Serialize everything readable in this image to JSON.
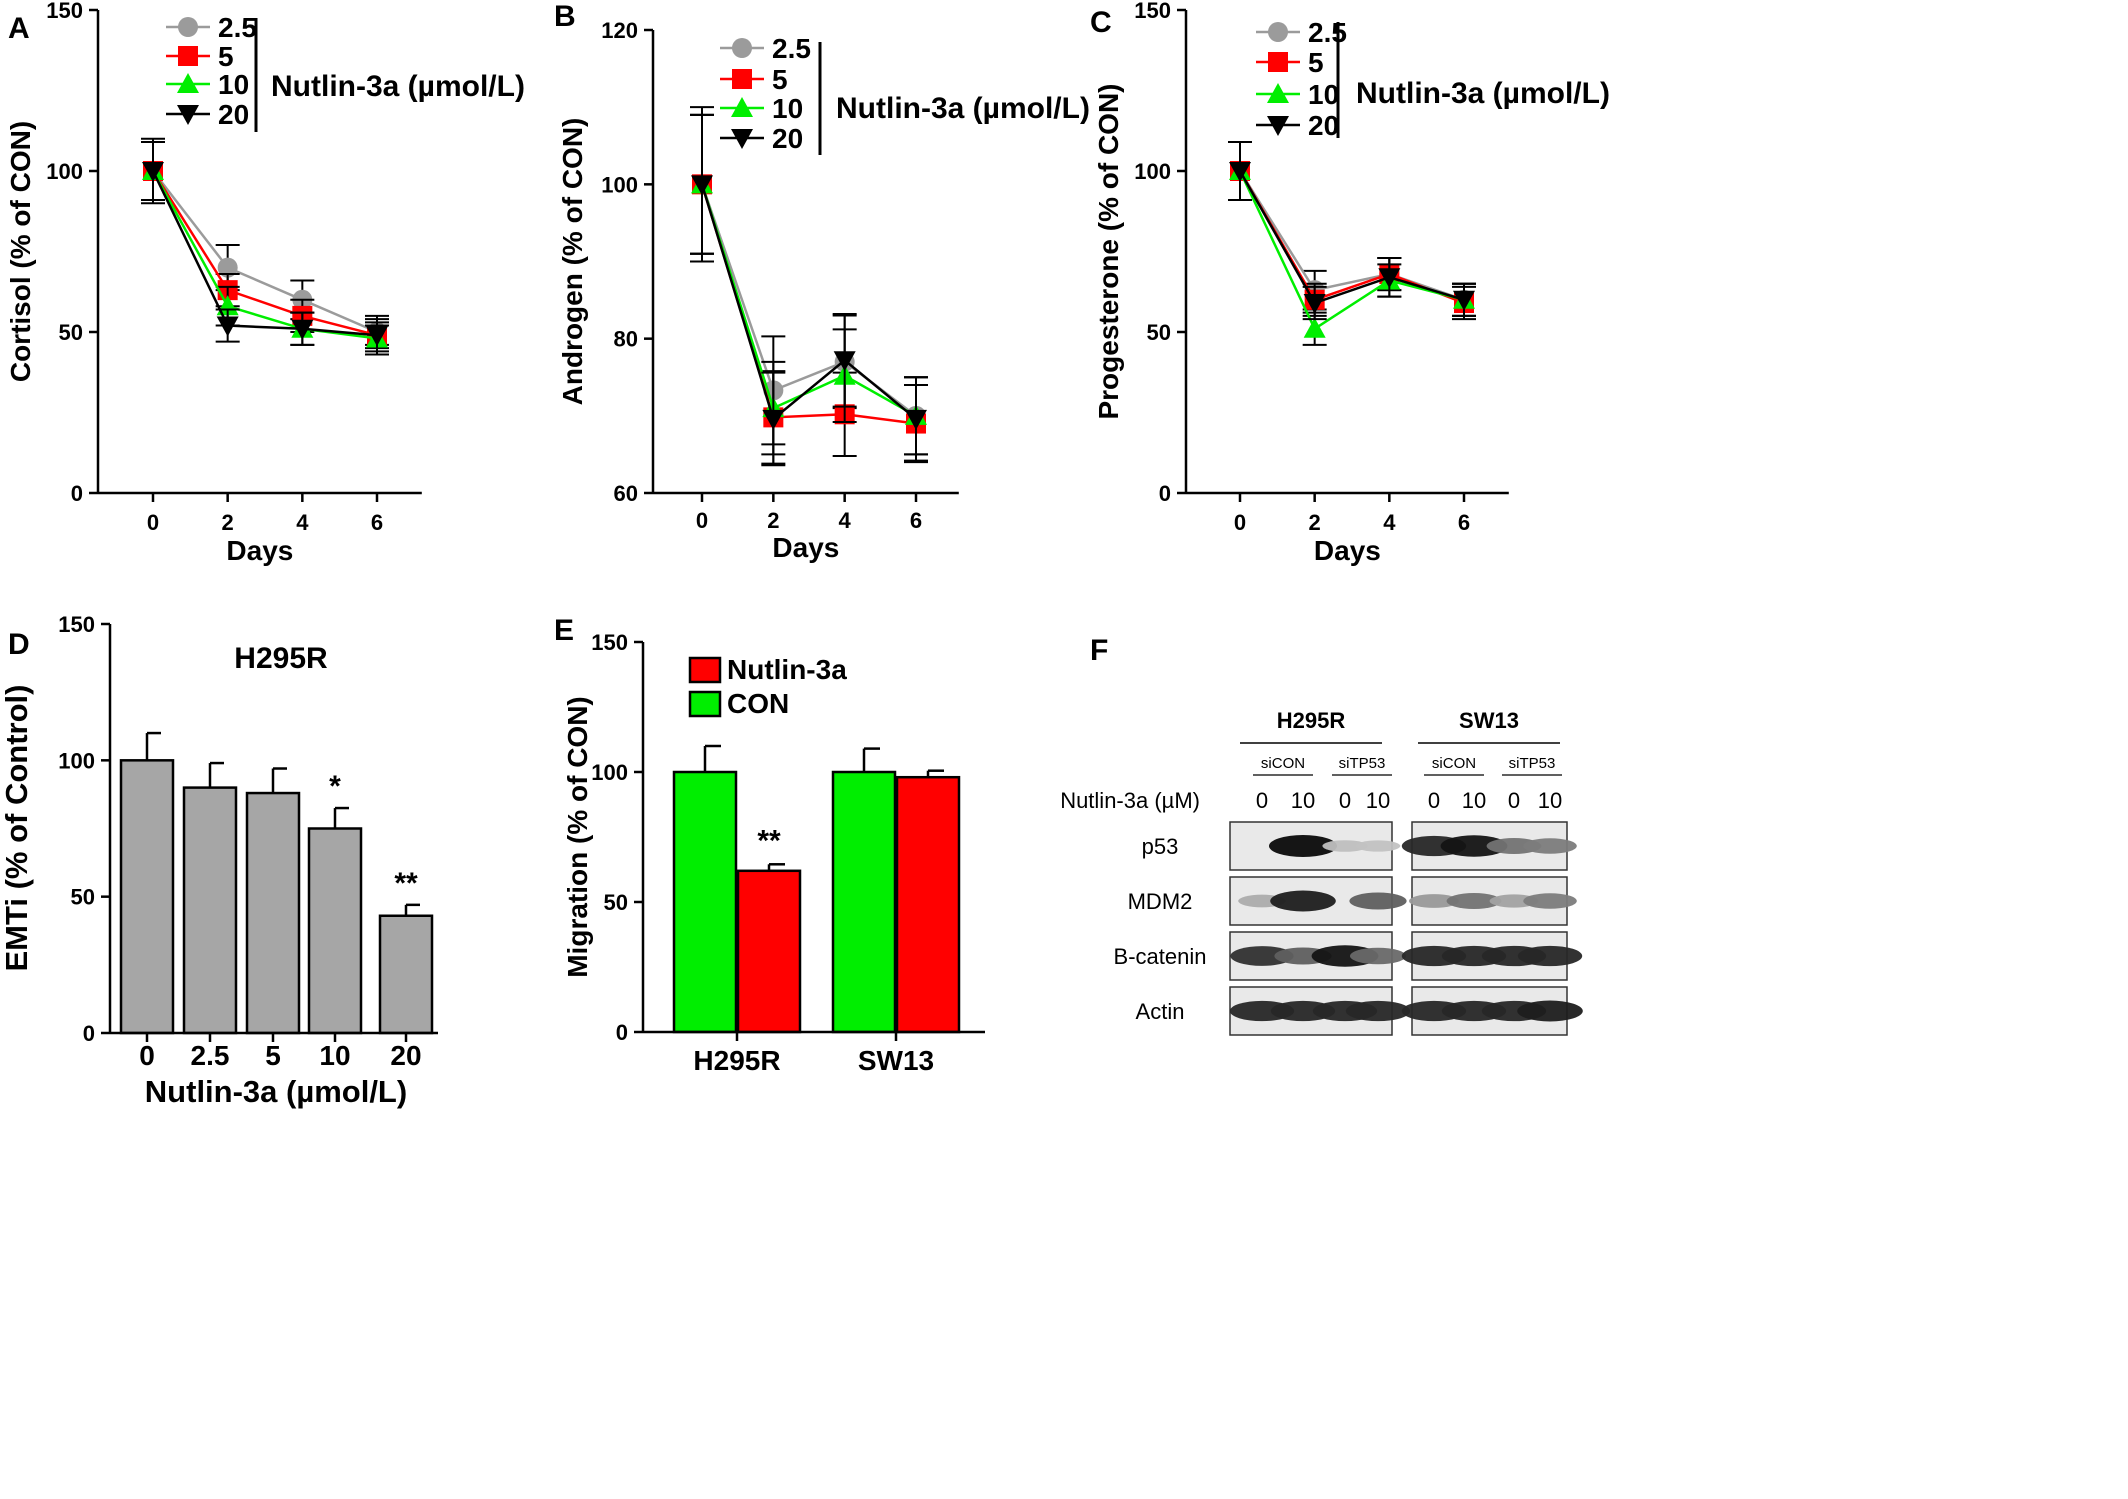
{
  "chart_data": [
    {
      "panel": "A",
      "type": "line",
      "ylabel": "Cortisol (% of CON)",
      "xlabel": "Days",
      "x": [
        0,
        2,
        4,
        6
      ],
      "xticks": [
        "0",
        "2",
        "4",
        "6"
      ],
      "ylim": [
        0,
        150
      ],
      "yticks": [
        0,
        50,
        100,
        150
      ],
      "legend_title": "Nutlin-3a (µmol/L)",
      "series": [
        {
          "name": "2.5",
          "color": "#9b9b9b",
          "marker": "circle",
          "values": [
            100,
            70,
            60,
            50
          ],
          "err": [
            9,
            7,
            6,
            4
          ]
        },
        {
          "name": "5",
          "color": "#ff0000",
          "marker": "square",
          "values": [
            100,
            63,
            55,
            49
          ],
          "err": [
            9,
            5,
            5,
            4
          ]
        },
        {
          "name": "10",
          "color": "#00ee00",
          "marker": "triangle-up",
          "values": [
            100,
            58,
            51,
            48
          ],
          "err": [
            9,
            6,
            5,
            4
          ]
        },
        {
          "name": "20",
          "color": "#000000",
          "marker": "triangle-down",
          "values": [
            100,
            52,
            51,
            49
          ],
          "err": [
            10,
            5,
            5,
            6
          ]
        }
      ]
    },
    {
      "panel": "B",
      "type": "line",
      "ylabel": "Androgen (% of CON)",
      "xlabel": "Days",
      "x": [
        0,
        2,
        4,
        6
      ],
      "xticks": [
        "0",
        "2",
        "4",
        "6"
      ],
      "ylim": [
        60,
        120
      ],
      "yticks": [
        60,
        80,
        100,
        120
      ],
      "legend_title": "Nutlin-3a (µmol/L)",
      "series": [
        {
          "name": "2.5",
          "color": "#9b9b9b",
          "marker": "circle",
          "values": [
            100,
            73.3,
            77,
            70
          ],
          "err": [
            10,
            7,
            6,
            5
          ]
        },
        {
          "name": "5",
          "color": "#ff0000",
          "marker": "square",
          "values": [
            100,
            69.8,
            70.2,
            69
          ],
          "err": [
            9,
            6,
            5.4,
            5
          ]
        },
        {
          "name": "10",
          "color": "#00ee00",
          "marker": "triangle-up",
          "values": [
            100,
            71,
            75.2,
            70
          ],
          "err": [
            9,
            6,
            6,
            5
          ]
        },
        {
          "name": "20",
          "color": "#000000",
          "marker": "triangle-down",
          "values": [
            100,
            69.6,
            77.2,
            69.6
          ],
          "err": [
            9,
            6,
            6,
            5.4
          ]
        }
      ]
    },
    {
      "panel": "C",
      "type": "line",
      "ylabel": "Progesterone (% of CON)",
      "xlabel": "Days",
      "x": [
        0,
        2,
        4,
        6
      ],
      "xticks": [
        "0",
        "2",
        "4",
        "6"
      ],
      "ylim": [
        0,
        150
      ],
      "yticks": [
        0,
        50,
        100,
        150
      ],
      "legend_title": "Nutlin-3a (µmol/L)",
      "series": [
        {
          "name": "2.5",
          "color": "#9b9b9b",
          "marker": "circle",
          "values": [
            100,
            63,
            68,
            60
          ],
          "err": [
            9,
            6,
            5,
            5
          ]
        },
        {
          "name": "5",
          "color": "#ff0000",
          "marker": "square",
          "values": [
            100,
            60,
            68,
            59
          ],
          "err": [
            9,
            5,
            5,
            5
          ]
        },
        {
          "name": "10",
          "color": "#00ee00",
          "marker": "triangle-up",
          "values": [
            100,
            51,
            66,
            60
          ],
          "err": [
            9,
            5,
            5,
            5
          ]
        },
        {
          "name": "20",
          "color": "#000000",
          "marker": "triangle-down",
          "values": [
            100,
            59,
            67,
            60
          ],
          "err": [
            9,
            5,
            6,
            5
          ]
        }
      ]
    },
    {
      "panel": "D",
      "type": "bar",
      "title": "H295R",
      "ylabel": "EMTi (% of Control)",
      "xlabel": "Nutlin-3a (µmol/L)",
      "categories": [
        "0",
        "2.5",
        "5",
        "10",
        "20"
      ],
      "values": [
        100,
        90,
        88,
        75,
        43
      ],
      "err": [
        10,
        9,
        9,
        7.5,
        4
      ],
      "significance": [
        "",
        "",
        "",
        "*",
        "**"
      ],
      "bar_color": "#a6a6a6",
      "ylim": [
        0,
        150
      ],
      "yticks": [
        0,
        50,
        100,
        150
      ]
    },
    {
      "panel": "E",
      "type": "bar",
      "ylabel": "Migration (% of CON)",
      "categories": [
        "H295R",
        "SW13"
      ],
      "series": [
        {
          "name": "CON",
          "color": "#00ee00",
          "values": [
            100,
            100
          ],
          "err": [
            10,
            9
          ]
        },
        {
          "name": "Nutlin-3a",
          "color": "#ff0000",
          "values": [
            62,
            98
          ],
          "err": [
            2.5,
            2.5
          ]
        }
      ],
      "significance": [
        [
          "",
          "**"
        ],
        [
          "",
          ""
        ]
      ],
      "legend_order": [
        "Nutlin-3a",
        "CON"
      ],
      "ylim": [
        0,
        150
      ],
      "yticks": [
        0,
        50,
        100,
        150
      ]
    }
  ],
  "western_blot": {
    "panel": "F",
    "cell_lines": [
      "H295R",
      "SW13"
    ],
    "groups": [
      "siCON",
      "siTP53",
      "siCON",
      "siTP53"
    ],
    "treatment_label": "Nutlin-3a (µM)",
    "doses": [
      "0",
      "10",
      "0",
      "10",
      "0",
      "10",
      "0",
      "10"
    ],
    "rows": [
      {
        "label": "p53",
        "intensity": [
          0.0,
          1.0,
          0.05,
          0.03,
          0.85,
          0.95,
          0.45,
          0.4
        ]
      },
      {
        "label": "MDM2",
        "intensity": [
          0.15,
          0.9,
          0.0,
          0.55,
          0.25,
          0.45,
          0.2,
          0.4
        ]
      },
      {
        "label": "B-catenin",
        "intensity": [
          0.8,
          0.55,
          0.95,
          0.5,
          0.85,
          0.85,
          0.85,
          0.85
        ]
      },
      {
        "label": "Actin",
        "intensity": [
          0.85,
          0.85,
          0.85,
          0.85,
          0.85,
          0.85,
          0.85,
          0.9
        ]
      }
    ]
  }
}
